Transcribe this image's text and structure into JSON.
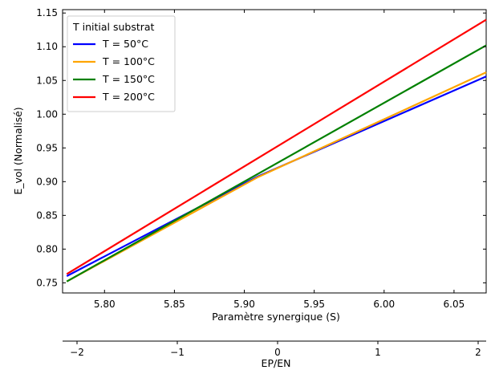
{
  "chart_data": {
    "type": "line",
    "xlabel": "Paramètre synergique (S)",
    "ylabel": "E_vol (Normalisé)",
    "xlim": [
      5.77,
      6.073
    ],
    "ylim": [
      0.735,
      1.155
    ],
    "x_ticks": [
      "5.80",
      "5.85",
      "5.90",
      "5.95",
      "6.00",
      "6.05"
    ],
    "y_ticks": [
      "0.75",
      "0.80",
      "0.85",
      "0.90",
      "0.95",
      "1.00",
      "1.05",
      "1.10",
      "1.15"
    ],
    "secondary_x_axis": {
      "label": "EP/EN",
      "lim": [
        -2,
        2
      ],
      "ticks": [
        "−2",
        "−1",
        "0",
        "1",
        "2"
      ]
    },
    "legend": {
      "title": "T initial substrat",
      "position": "top-left"
    },
    "grid": false,
    "series": [
      {
        "name": "T = 50°C",
        "color": "#0000ff",
        "x": [
          5.773,
          5.91,
          6.073
        ],
        "y": [
          0.76,
          0.908,
          1.056
        ]
      },
      {
        "name": "T = 100°C",
        "color": "#ffa500",
        "x": [
          5.773,
          5.91,
          6.073
        ],
        "y": [
          0.752,
          0.907,
          1.062
        ]
      },
      {
        "name": "T = 150°C",
        "color": "#008000",
        "x": [
          5.773,
          6.073
        ],
        "y": [
          0.752,
          1.102
        ]
      },
      {
        "name": "T = 200°C",
        "color": "#ff0000",
        "x": [
          5.773,
          6.073
        ],
        "y": [
          0.763,
          1.14
        ]
      }
    ]
  }
}
